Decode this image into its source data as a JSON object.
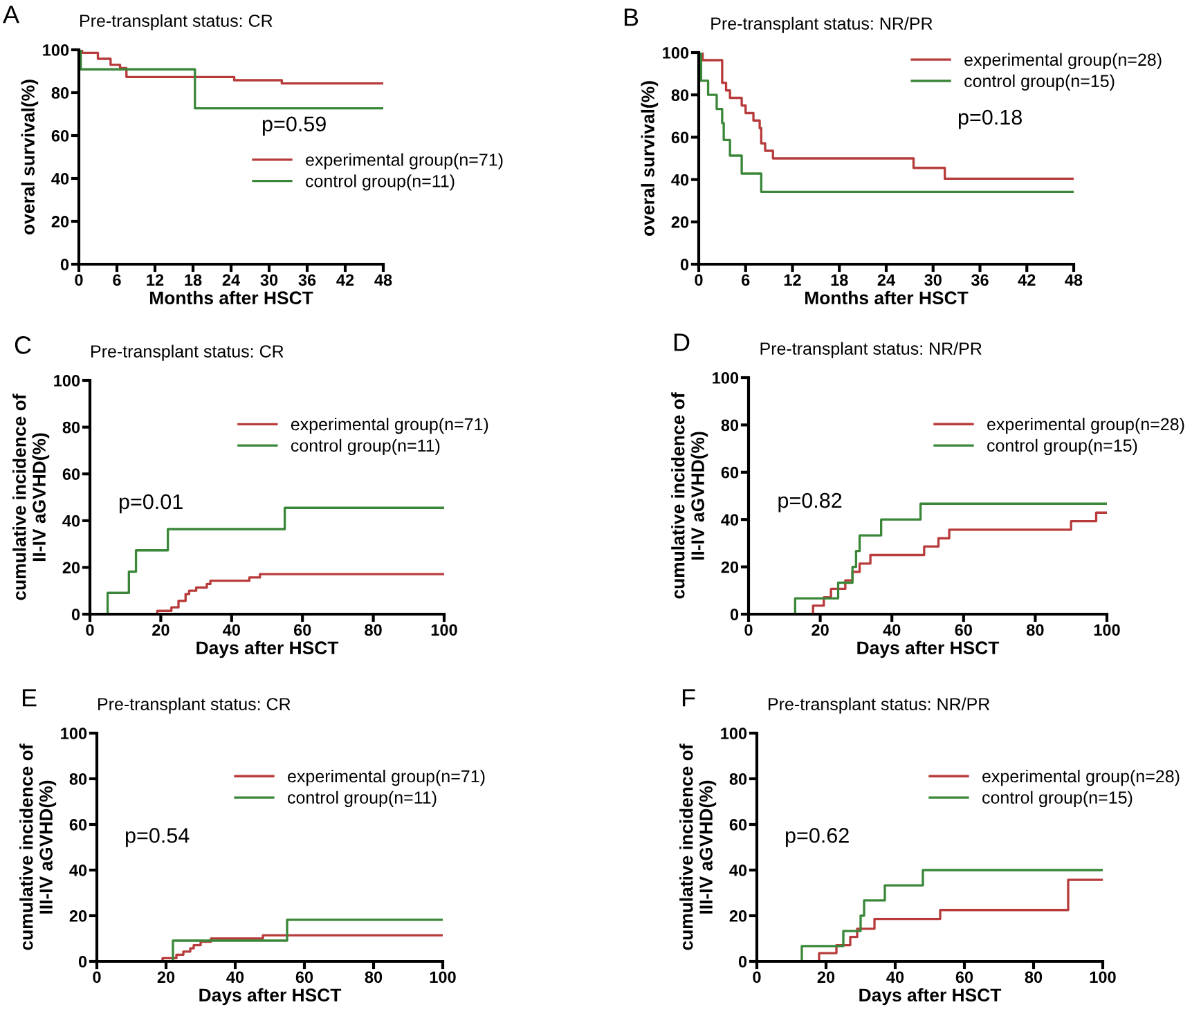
{
  "chart_data": [
    {
      "type": "step",
      "title": "Pre-transplant status: CR",
      "xlabel": "Months after HSCT",
      "ylabel": "overal survival(%)",
      "annotations": [
        "A",
        "p=0.59"
      ],
      "xlim": [
        0,
        48
      ],
      "xticks": [
        0,
        6,
        12,
        18,
        24,
        30,
        36,
        42,
        48
      ],
      "ylim": [
        0,
        100
      ],
      "yticks": [
        0,
        20,
        40,
        60,
        80,
        100
      ],
      "grid": false,
      "legend": "right",
      "series": [
        {
          "name": "experimental group(n=71)",
          "color": "#b83b3b",
          "x": [
            0,
            0.5,
            3,
            5,
            6.5,
            7.5,
            24.5,
            32,
            48
          ],
          "values": [
            100,
            98.6,
            95.8,
            93,
            91.5,
            87.3,
            85.8,
            84.3,
            84.3
          ]
        },
        {
          "name": "control group(n=11)",
          "color": "#3a873a",
          "x": [
            0,
            0.3,
            18.3,
            48
          ],
          "values": [
            100,
            90.9,
            72.7,
            72.7
          ]
        }
      ]
    },
    {
      "type": "step",
      "title": "Pre-transplant status: NR/PR",
      "xlabel": "Months after HSCT",
      "ylabel": "overal survival(%)",
      "annotations": [
        "B",
        "p=0.18"
      ],
      "xlim": [
        0,
        48
      ],
      "xticks": [
        0,
        6,
        12,
        18,
        24,
        30,
        36,
        42,
        48
      ],
      "ylim": [
        0,
        100
      ],
      "yticks": [
        0,
        20,
        40,
        60,
        80,
        100
      ],
      "grid": false,
      "legend": "top right",
      "series": [
        {
          "name": "experimental group(n=28)",
          "color": "#b83b3b",
          "x": [
            0,
            0.5,
            3,
            3.5,
            4,
            5.5,
            6,
            7,
            7.8,
            8,
            8.5,
            9.5,
            27.5,
            31.5,
            48
          ],
          "values": [
            100,
            96.4,
            85.7,
            82.1,
            78.6,
            75,
            71.4,
            67.9,
            64.3,
            57.1,
            53.6,
            50,
            45.5,
            40.4,
            40.4
          ]
        },
        {
          "name": "control group(n=15)",
          "color": "#3a873a",
          "x": [
            0,
            0.3,
            1.2,
            2.3,
            3,
            3.2,
            4,
            5.5,
            8,
            48
          ],
          "values": [
            100,
            86.7,
            80,
            73.3,
            66.7,
            58.7,
            51.3,
            42.8,
            34.2,
            34.2
          ]
        }
      ]
    },
    {
      "type": "step",
      "title": "Pre-transplant status: CR",
      "xlabel": "Days after HSCT",
      "ylabel": "cumulative incidence of\nII-IV aGVHD(%)",
      "annotations": [
        "C",
        "p=0.01"
      ],
      "xlim": [
        0,
        100
      ],
      "xticks": [
        0,
        20,
        40,
        60,
        80,
        100
      ],
      "ylim": [
        0,
        100
      ],
      "yticks": [
        0,
        20,
        40,
        60,
        80,
        100
      ],
      "grid": false,
      "legend": "right",
      "series": [
        {
          "name": "experimental group(n=71)",
          "color": "#b83b3b",
          "x": [
            0,
            19,
            23,
            25,
            27,
            28,
            30,
            33,
            34,
            45,
            48,
            100
          ],
          "values": [
            0,
            1.4,
            2.9,
            5.7,
            8.6,
            10,
            11.4,
            12.9,
            14.3,
            15.7,
            17.1,
            17.1
          ]
        },
        {
          "name": "control group(n=11)",
          "color": "#3a873a",
          "x": [
            0,
            5,
            11,
            13,
            22,
            55,
            100
          ],
          "values": [
            0,
            9.1,
            18.2,
            27.3,
            36.4,
            45.5,
            45.5
          ]
        }
      ]
    },
    {
      "type": "step",
      "title": "Pre-transplant status: NR/PR",
      "xlabel": "Days after HSCT",
      "ylabel": "cumulative incidence of\nII-IV aGVHD(%)",
      "annotations": [
        "D",
        "p=0.82"
      ],
      "xlim": [
        0,
        100
      ],
      "xticks": [
        0,
        20,
        40,
        60,
        80,
        100
      ],
      "ylim": [
        0,
        100
      ],
      "yticks": [
        0,
        20,
        40,
        60,
        80,
        100
      ],
      "grid": false,
      "legend": "right",
      "series": [
        {
          "name": "experimental group(n=28)",
          "color": "#b83b3b",
          "x": [
            0,
            18,
            21,
            23,
            27,
            29,
            31,
            34,
            49,
            53,
            56,
            90,
            97,
            100
          ],
          "values": [
            0,
            3.6,
            7.1,
            10.7,
            14.3,
            17.9,
            21.4,
            25,
            28.6,
            32.1,
            35.7,
            39.3,
            42.9,
            42.9
          ]
        },
        {
          "name": "control group(n=15)",
          "color": "#3a873a",
          "x": [
            0,
            13,
            25,
            29,
            30,
            31,
            37,
            48,
            100
          ],
          "values": [
            0,
            6.7,
            13.3,
            20,
            26.7,
            33.3,
            40,
            46.7,
            46.7
          ]
        }
      ]
    },
    {
      "type": "step",
      "title": "Pre-transplant status: CR",
      "xlabel": "Days after HSCT",
      "ylabel": "cumulative incidence of\nIII-IV aGVHD(%)",
      "annotations": [
        "E",
        "p=0.54"
      ],
      "xlim": [
        0,
        100
      ],
      "xticks": [
        0,
        20,
        40,
        60,
        80,
        100
      ],
      "ylim": [
        0,
        100
      ],
      "yticks": [
        0,
        20,
        40,
        60,
        80,
        100
      ],
      "grid": false,
      "legend": "right",
      "series": [
        {
          "name": "experimental group(n=71)",
          "color": "#b83b3b",
          "x": [
            0,
            19,
            23,
            25,
            27,
            28,
            30,
            33,
            48,
            100
          ],
          "values": [
            0,
            1.4,
            2.9,
            4.3,
            5.7,
            7.1,
            8.6,
            10,
            11.4,
            11.4
          ]
        },
        {
          "name": "control group(n=11)",
          "color": "#3a873a",
          "x": [
            0,
            22,
            55,
            100
          ],
          "values": [
            0,
            9.1,
            18.2,
            18.2
          ]
        }
      ]
    },
    {
      "type": "step",
      "title": "Pre-transplant status: NR/PR",
      "xlabel": "Days after HSCT",
      "ylabel": "cumulative incidence of\nIII-IV aGVHD(%)",
      "annotations": [
        "F",
        "p=0.62"
      ],
      "xlim": [
        0,
        100
      ],
      "xticks": [
        0,
        20,
        40,
        60,
        80,
        100
      ],
      "ylim": [
        0,
        100
      ],
      "yticks": [
        0,
        20,
        40,
        60,
        80,
        100
      ],
      "grid": false,
      "legend": "right",
      "series": [
        {
          "name": "experimental group(n=28)",
          "color": "#b83b3b",
          "x": [
            0,
            18,
            23,
            27,
            29,
            34,
            53,
            90,
            100
          ],
          "values": [
            0,
            3.6,
            7.1,
            10.7,
            14.3,
            18.6,
            22.5,
            35.7,
            35.7
          ]
        },
        {
          "name": "control group(n=15)",
          "color": "#3a873a",
          "x": [
            0,
            13,
            25,
            30,
            31,
            37,
            48,
            100
          ],
          "values": [
            0,
            6.7,
            13.3,
            20,
            26.7,
            33.3,
            40,
            40
          ]
        }
      ]
    }
  ]
}
